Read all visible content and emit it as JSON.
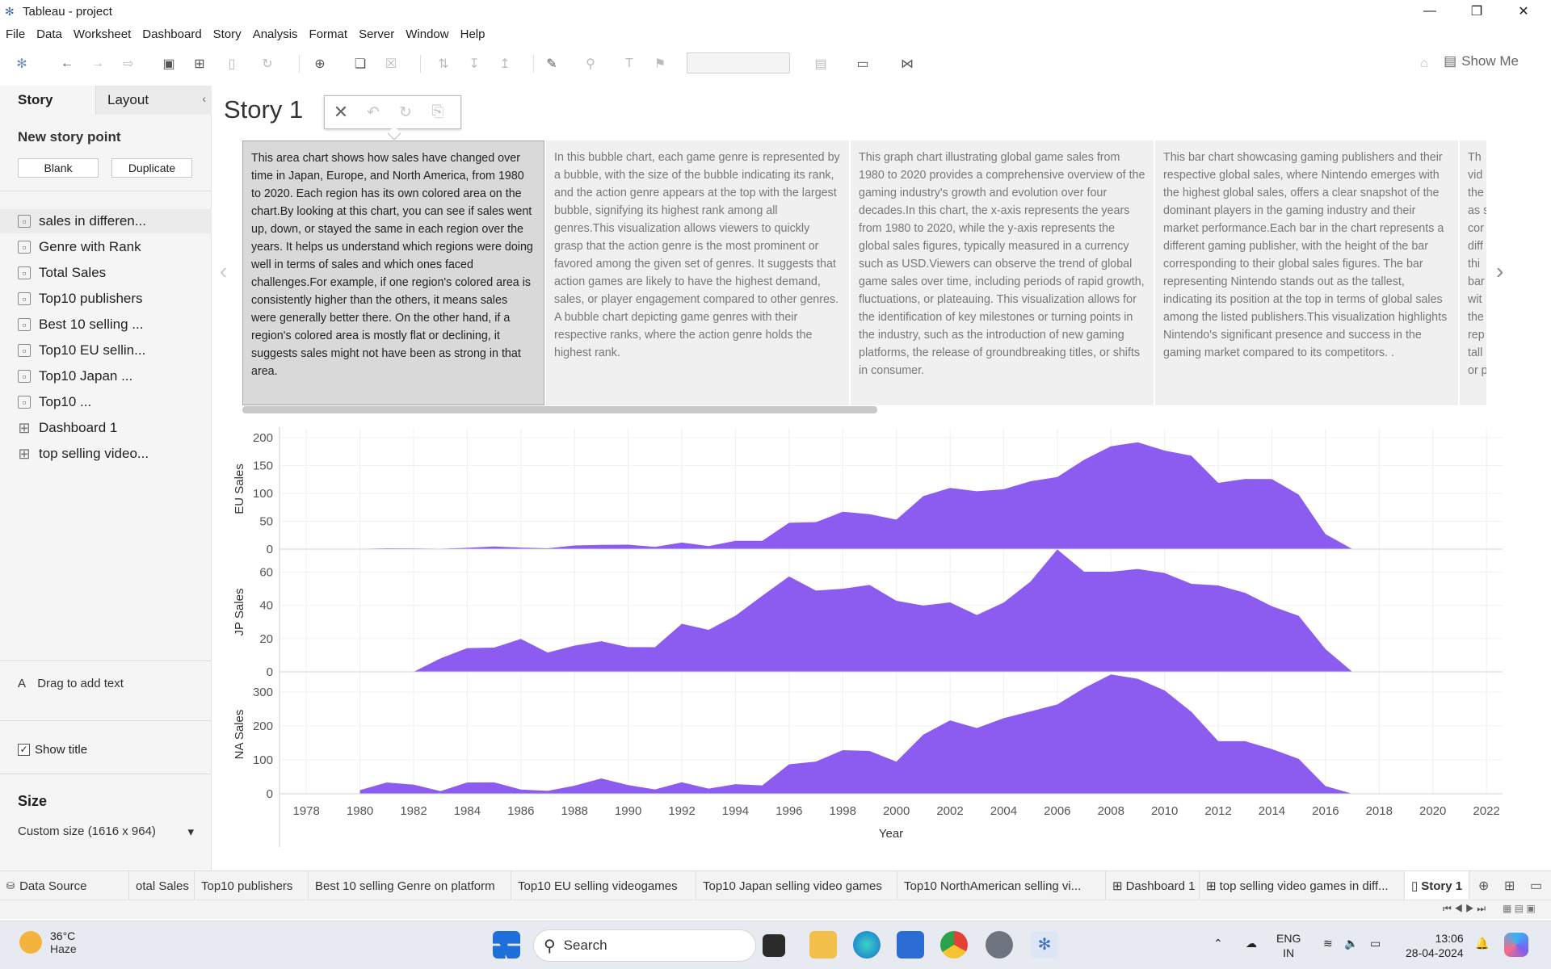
{
  "window": {
    "title": "Tableau - project"
  },
  "menu": [
    "File",
    "Data",
    "Worksheet",
    "Dashboard",
    "Story",
    "Analysis",
    "Format",
    "Server",
    "Window",
    "Help"
  ],
  "toolbar": {
    "show_me": "Show Me"
  },
  "sidebar": {
    "tab_story": "Story",
    "tab_layout": "Layout",
    "new_story_point": "New story point",
    "blank": "Blank",
    "duplicate": "Duplicate",
    "sheets": [
      {
        "label": "sales in differen...",
        "type": "sheet"
      },
      {
        "label": "Genre with Rank",
        "type": "sheet"
      },
      {
        "label": "Total Sales",
        "type": "sheet"
      },
      {
        "label": "Top10 publishers",
        "type": "sheet"
      },
      {
        "label": "Best 10 selling ...",
        "type": "sheet"
      },
      {
        "label": "Top10 EU sellin...",
        "type": "sheet"
      },
      {
        "label": "Top10 Japan ...",
        "type": "sheet"
      },
      {
        "label": "Top10 ...",
        "type": "sheet"
      },
      {
        "label": "Dashboard 1",
        "type": "dashboard"
      },
      {
        "label": "top selling video...",
        "type": "dashboard"
      }
    ],
    "drag_text": "Drag to add text",
    "show_title": "Show title",
    "size_label": "Size",
    "size_value": "Custom size (1616 x 964)"
  },
  "story": {
    "title": "Story 1",
    "captions": [
      "This area  chart shows how sales have changed over time in Japan, Europe, and North America, from 1980 to 2020. Each region has its own colored area on the chart.By looking at this chart, you can see if sales went up, down, or stayed the same in each region over the years.  It helps us understand which regions were doing well in terms of sales and which ones faced challenges.For example, if one region's colored area is consistently higher than the others, it means sales were generally better there. On the other hand, if a region's colored area is mostly flat or declining, it suggests sales might not have been as strong in that area.",
      "In this bubble chart, each game genre is represented by a bubble, with the size of the bubble indicating its rank, and the action genre appears at the top with the largest bubble, signifying its highest rank among all genres.This visualization allows viewers to quickly grasp that the action genre is the most prominent or favored among the given set of genres.  It suggests that action games are likely to have the highest demand, sales, or player engagement compared to other genres.  A bubble chart depicting game genres with their respective ranks, where the action genre holds the highest rank.",
      " This graph chart illustrating global game sales from 1980 to 2020 provides a comprehensive overview of the gaming industry's growth and evolution over four decades.In this chart, the x-axis represents the years from 1980 to 2020, while the y-axis represents the global sales figures, typically measured in a currency such as USD.Viewers can observe the trend of global game sales over time, including periods of rapid growth, fluctuations, or plateauing. This visualization allows for the identification of key milestones or turning points in the industry, such as the introduction of new gaming platforms, the release of groundbreaking titles, or shifts in consumer.",
      "This bar chart showcasing gaming publishers and their respective global sales, where Nintendo emerges with the highest global sales, offers a clear snapshot of the dominant players in the gaming industry and their market performance.Each bar in the chart represents a different gaming publisher, with the height of the bar corresponding to their global sales figures. The bar representing Nintendo stands out as the tallest, indicating its position at the top in terms of global sales among the listed publishers.This visualization highlights Nintendo's significant presence and success in the gaming market compared to its competitors. .",
      "Th vid the as s cor diff thi bar wit the rep tall or p"
    ]
  },
  "chart_data": {
    "type": "area",
    "xlabel": "Year",
    "x_ticks": [
      1978,
      1980,
      1982,
      1984,
      1986,
      1988,
      1990,
      1992,
      1994,
      1996,
      1998,
      2000,
      2002,
      2004,
      2006,
      2008,
      2010,
      2012,
      2014,
      2016,
      2018,
      2020,
      2022
    ],
    "color": "#8c5cf0",
    "x": [
      1980,
      1981,
      1982,
      1983,
      1984,
      1985,
      1986,
      1987,
      1988,
      1989,
      1990,
      1991,
      1992,
      1993,
      1994,
      1995,
      1996,
      1997,
      1998,
      1999,
      2000,
      2001,
      2002,
      2003,
      2004,
      2005,
      2006,
      2007,
      2008,
      2009,
      2010,
      2011,
      2012,
      2013,
      2014,
      2015,
      2016,
      2017,
      2018,
      2019,
      2020
    ],
    "series": [
      {
        "name": "EU Sales",
        "ylabel": "EU Sales",
        "ylim": [
          0,
          210
        ],
        "ticks": [
          0,
          50,
          100,
          150,
          200
        ],
        "values": [
          0.5,
          1.5,
          1.2,
          0.8,
          2.3,
          4.7,
          2.8,
          1.4,
          6.6,
          7.6,
          8.0,
          4.0,
          11.7,
          5.4,
          14.9,
          14.9,
          47.3,
          48.3,
          66.9,
          62.7,
          52.8,
          94.9,
          109.7,
          103.8,
          107.3,
          121.6,
          129.2,
          160.2,
          184.4,
          191.6,
          176.6,
          167.4,
          118.8,
          125.8,
          125.7,
          97.7,
          26.8,
          0.2,
          0.2,
          0.0,
          0.0
        ]
      },
      {
        "name": "JP Sales",
        "ylabel": "JP Sales",
        "ylim": [
          0,
          70
        ],
        "ticks": [
          0,
          20,
          40,
          60
        ],
        "values": [
          0,
          0,
          0,
          8.1,
          14.3,
          14.6,
          19.8,
          11.6,
          15.8,
          18.4,
          14.9,
          14.8,
          28.9,
          25.3,
          33.8,
          45.8,
          57.4,
          48.9,
          50.0,
          52.3,
          42.8,
          39.9,
          41.8,
          34.2,
          41.7,
          54.3,
          73.7,
          60.3,
          60.3,
          61.9,
          59.5,
          53.0,
          52.0,
          47.6,
          39.5,
          33.7,
          13.7,
          0,
          0,
          0,
          0
        ]
      },
      {
        "name": "NA Sales",
        "ylabel": "NA Sales",
        "ylim": [
          0,
          340
        ],
        "ticks": [
          0,
          100,
          200,
          300
        ],
        "values": [
          10.6,
          33.4,
          26.9,
          7.8,
          33.3,
          33.7,
          12.5,
          8.5,
          23.9,
          45.2,
          25.5,
          12.8,
          33.9,
          15.1,
          28.2,
          24.8,
          86.8,
          94.8,
          128.4,
          126.1,
          94.5,
          173.9,
          216.2,
          193.6,
          222.5,
          242.6,
          263.1,
          311.2,
          351.4,
          338.6,
          304.2,
          241.2,
          154.9,
          154.8,
          131.6,
          102.8,
          22.7,
          0.0,
          0.0,
          0.0,
          0.0
        ]
      }
    ]
  },
  "bottom_tabs": [
    "Data Source",
    "otal Sales",
    "Top10 publishers",
    "Best 10 selling Genre on  platform",
    "Top10 EU selling videogames",
    "Top10 Japan selling video games",
    "Top10 NorthAmerican selling vi...",
    "Dashboard 1",
    "top selling video games in diff...",
    "Story 1"
  ],
  "taskbar": {
    "temp": "36°C",
    "weather": "Haze",
    "search_placeholder": "Search",
    "lang1": "ENG",
    "lang2": "IN",
    "time": "13:06",
    "date": "28-04-2024"
  }
}
